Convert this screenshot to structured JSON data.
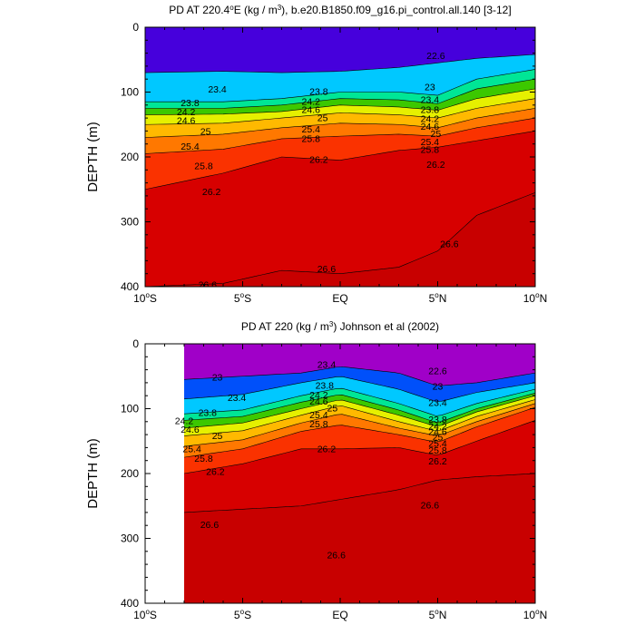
{
  "panels": [
    {
      "id": "model",
      "title_pre": "PD AT 220.4",
      "title_deg": "o",
      "title_mid": "E (kg / m",
      "title_sup": "3",
      "title_post": "), b.e20.B1850.f09_g16.pi_control.all.140 [3-12]"
    },
    {
      "id": "obs",
      "title_pre": "PD AT 220 (kg / m",
      "title_sup": "3",
      "title_post": ") Johnson et al (2002)"
    }
  ],
  "x_ticks": [
    {
      "value": -10,
      "num": "10",
      "deg": "o",
      "hemi": "S"
    },
    {
      "value": -5,
      "num": "5",
      "deg": "o",
      "hemi": "S"
    },
    {
      "value": 0,
      "num": "EQ",
      "deg": "",
      "hemi": ""
    },
    {
      "value": 5,
      "num": "5",
      "deg": "o",
      "hemi": "N"
    },
    {
      "value": 10,
      "num": "10",
      "deg": "o",
      "hemi": "N"
    }
  ],
  "y_ticks": [
    "0",
    "100",
    "200",
    "300",
    "400"
  ],
  "ylabel": "DEPTH (m)",
  "colors": {
    "axis": "#000000",
    "background": "#ffffff",
    "fill_min": "#a000c8",
    "fill_max": "#c80000"
  },
  "chart_data": [
    {
      "type": "heatmap",
      "subtype": "filled-contour",
      "ylabel": "DEPTH (m)",
      "xlim": [
        -10,
        10
      ],
      "ylim": [
        0,
        400
      ],
      "y_inverted": true,
      "contour_interval": 0.2,
      "levels": [
        22.6,
        22.8,
        23.0,
        23.2,
        23.4,
        23.6,
        23.8,
        24.0,
        24.2,
        24.4,
        24.6,
        24.8,
        25.0,
        25.2,
        25.4,
        25.6,
        25.8,
        26.0,
        26.2,
        26.4,
        26.6
      ],
      "contours": [
        {
          "level": 23.4,
          "x": [
            -10,
            -6,
            -3,
            0,
            3,
            5,
            7,
            10
          ],
          "depth": [
            70,
            68,
            70,
            68,
            62,
            55,
            48,
            42
          ]
        },
        {
          "level": 23.8,
          "x": [
            -10,
            -6,
            -3,
            0,
            3,
            5,
            7,
            10
          ],
          "depth": [
            115,
            115,
            110,
            100,
            100,
            105,
            80,
            65
          ]
        },
        {
          "level": 24.2,
          "x": [
            -10,
            -6,
            -3,
            0,
            3,
            5,
            7,
            10
          ],
          "depth": [
            125,
            125,
            120,
            110,
            112,
            118,
            95,
            80
          ]
        },
        {
          "level": 24.6,
          "x": [
            -10,
            -6,
            -3,
            0,
            3,
            5,
            7,
            10
          ],
          "depth": [
            135,
            134,
            130,
            120,
            123,
            128,
            110,
            95
          ]
        },
        {
          "level": 25.0,
          "x": [
            -10,
            -6,
            -3,
            0,
            3,
            5,
            7,
            10
          ],
          "depth": [
            150,
            148,
            140,
            132,
            135,
            140,
            125,
            110
          ]
        },
        {
          "level": 25.4,
          "x": [
            -10,
            -6,
            -3,
            0,
            3,
            5,
            7,
            10
          ],
          "depth": [
            170,
            165,
            155,
            148,
            150,
            155,
            140,
            125
          ]
        },
        {
          "level": 25.8,
          "x": [
            -10,
            -6,
            -3,
            0,
            3,
            5,
            7,
            10
          ],
          "depth": [
            195,
            188,
            172,
            168,
            165,
            168,
            155,
            140
          ]
        },
        {
          "level": 26.2,
          "x": [
            -10,
            -6,
            -3,
            0,
            3,
            5,
            7,
            10
          ],
          "depth": [
            250,
            225,
            200,
            205,
            190,
            185,
            175,
            160
          ]
        },
        {
          "level": 26.6,
          "x": [
            -10,
            -6,
            -3,
            0,
            3,
            5,
            7,
            10
          ],
          "depth": [
            400,
            395,
            375,
            380,
            370,
            345,
            290,
            255
          ]
        }
      ],
      "labels": [
        {
          "text": "23.4",
          "x": -6.3,
          "depth": 97
        },
        {
          "text": "23.8",
          "x": -7.7,
          "depth": 118
        },
        {
          "text": "24.2",
          "x": -7.9,
          "depth": 132
        },
        {
          "text": "24.6",
          "x": -7.9,
          "depth": 145
        },
        {
          "text": "25",
          "x": -6.9,
          "depth": 162
        },
        {
          "text": "25.4",
          "x": -7.7,
          "depth": 185
        },
        {
          "text": "25.8",
          "x": -7.0,
          "depth": 215
        },
        {
          "text": "26.2",
          "x": -6.6,
          "depth": 255
        },
        {
          "text": "26.6",
          "x": -6.8,
          "depth": 398
        },
        {
          "text": "23.8",
          "x": -1.1,
          "depth": 100
        },
        {
          "text": "24.2",
          "x": -1.5,
          "depth": 116
        },
        {
          "text": "24.6",
          "x": -1.5,
          "depth": 128
        },
        {
          "text": "25",
          "x": -0.9,
          "depth": 141
        },
        {
          "text": "25.4",
          "x": -1.5,
          "depth": 158
        },
        {
          "text": "25.8",
          "x": -1.5,
          "depth": 173
        },
        {
          "text": "26.2",
          "x": -1.1,
          "depth": 205
        },
        {
          "text": "26.6",
          "x": -0.7,
          "depth": 374
        },
        {
          "text": "22.6",
          "x": 4.9,
          "depth": 45
        },
        {
          "text": "23",
          "x": 4.6,
          "depth": 93
        },
        {
          "text": "23.4",
          "x": 4.6,
          "depth": 113
        },
        {
          "text": "23.8",
          "x": 4.6,
          "depth": 128
        },
        {
          "text": "24.2",
          "x": 4.6,
          "depth": 142
        },
        {
          "text": "24.6",
          "x": 4.6,
          "depth": 154
        },
        {
          "text": "25",
          "x": 4.9,
          "depth": 165
        },
        {
          "text": "25.4",
          "x": 4.6,
          "depth": 178
        },
        {
          "text": "25.8",
          "x": 4.6,
          "depth": 190
        },
        {
          "text": "26.2",
          "x": 4.9,
          "depth": 213
        },
        {
          "text": "26.6",
          "x": 5.6,
          "depth": 335
        }
      ]
    },
    {
      "type": "heatmap",
      "subtype": "filled-contour",
      "ylabel": "DEPTH (m)",
      "xlim": [
        -10,
        10
      ],
      "ylim": [
        0,
        400
      ],
      "y_inverted": true,
      "data_x_range": [
        -8,
        10
      ],
      "contour_interval": 0.2,
      "levels": [
        22.6,
        22.8,
        23.0,
        23.2,
        23.4,
        23.6,
        23.8,
        24.0,
        24.2,
        24.4,
        24.6,
        24.8,
        25.0,
        25.2,
        25.4,
        25.6,
        25.8,
        26.0,
        26.2,
        26.4,
        26.6
      ],
      "contours": [
        {
          "level": 23.0,
          "x": [
            -8,
            -5,
            -2,
            0,
            3,
            5,
            7,
            10
          ],
          "depth": [
            55,
            50,
            45,
            35,
            45,
            65,
            60,
            45
          ]
        },
        {
          "level": 23.4,
          "x": [
            -8,
            -5,
            -2,
            0,
            3,
            5,
            7,
            10
          ],
          "depth": [
            85,
            78,
            60,
            50,
            70,
            90,
            75,
            60
          ]
        },
        {
          "level": 23.8,
          "x": [
            -8,
            -5,
            -2,
            0,
            3,
            5,
            7,
            10
          ],
          "depth": [
            108,
            102,
            80,
            68,
            92,
            112,
            92,
            70
          ]
        },
        {
          "level": 24.2,
          "x": [
            -8,
            -5,
            -2,
            0,
            3,
            5,
            7,
            10
          ],
          "depth": [
            118,
            112,
            90,
            78,
            102,
            122,
            100,
            76
          ]
        },
        {
          "level": 24.6,
          "x": [
            -8,
            -5,
            -2,
            0,
            3,
            5,
            7,
            10
          ],
          "depth": [
            130,
            122,
            100,
            86,
            110,
            128,
            105,
            80
          ]
        },
        {
          "level": 25.0,
          "x": [
            -8,
            -5,
            -2,
            0,
            3,
            5,
            7,
            10
          ],
          "depth": [
            142,
            134,
            110,
            95,
            120,
            135,
            112,
            86
          ]
        },
        {
          "level": 25.4,
          "x": [
            -8,
            -5,
            -2,
            0,
            3,
            5,
            7,
            10
          ],
          "depth": [
            158,
            148,
            122,
            108,
            130,
            142,
            120,
            92
          ]
        },
        {
          "level": 25.8,
          "x": [
            -8,
            -5,
            -2,
            0,
            3,
            5,
            7,
            10
          ],
          "depth": [
            175,
            162,
            135,
            125,
            140,
            152,
            128,
            98
          ]
        },
        {
          "level": 26.2,
          "x": [
            -8,
            -5,
            -2,
            0,
            3,
            5,
            7,
            10
          ],
          "depth": [
            200,
            185,
            162,
            162,
            160,
            172,
            150,
            118
          ]
        },
        {
          "level": 26.6,
          "x": [
            -8,
            -5,
            -2,
            0,
            3,
            5,
            7,
            10
          ],
          "depth": [
            260,
            255,
            250,
            240,
            225,
            210,
            205,
            200
          ]
        }
      ],
      "labels": [
        {
          "text": "23",
          "x": -6.3,
          "depth": 53
        },
        {
          "text": "23.4",
          "x": -5.3,
          "depth": 84
        },
        {
          "text": "23.8",
          "x": -6.8,
          "depth": 107
        },
        {
          "text": "24.2",
          "x": -8.0,
          "depth": 120
        },
        {
          "text": "24.6",
          "x": -7.7,
          "depth": 133
        },
        {
          "text": "25",
          "x": -6.3,
          "depth": 143
        },
        {
          "text": "25.4",
          "x": -7.6,
          "depth": 163
        },
        {
          "text": "25.8",
          "x": -7.0,
          "depth": 178
        },
        {
          "text": "26.2",
          "x": -6.4,
          "depth": 198
        },
        {
          "text": "26.6",
          "x": -6.7,
          "depth": 280
        },
        {
          "text": "23.4",
          "x": -0.7,
          "depth": 33
        },
        {
          "text": "23.8",
          "x": -0.8,
          "depth": 65
        },
        {
          "text": "24.2",
          "x": -1.1,
          "depth": 80
        },
        {
          "text": "24.6",
          "x": -1.1,
          "depth": 90
        },
        {
          "text": "25",
          "x": -0.4,
          "depth": 100
        },
        {
          "text": "25.4",
          "x": -1.1,
          "depth": 111
        },
        {
          "text": "25.8",
          "x": -1.1,
          "depth": 125
        },
        {
          "text": "26.2",
          "x": -0.7,
          "depth": 163
        },
        {
          "text": "26.6",
          "x": -0.2,
          "depth": 327
        },
        {
          "text": "22.6",
          "x": 5.0,
          "depth": 43
        },
        {
          "text": "23",
          "x": 5.0,
          "depth": 67
        },
        {
          "text": "23.4",
          "x": 5.0,
          "depth": 92
        },
        {
          "text": "23.8",
          "x": 5.0,
          "depth": 118
        },
        {
          "text": "24.2",
          "x": 5.0,
          "depth": 128
        },
        {
          "text": "24.6",
          "x": 5.0,
          "depth": 137
        },
        {
          "text": "25",
          "x": 5.0,
          "depth": 145
        },
        {
          "text": "25.4",
          "x": 5.0,
          "depth": 155
        },
        {
          "text": "25.8",
          "x": 5.0,
          "depth": 165
        },
        {
          "text": "26.2",
          "x": 5.0,
          "depth": 182
        },
        {
          "text": "26.6",
          "x": 4.6,
          "depth": 250
        }
      ]
    }
  ]
}
